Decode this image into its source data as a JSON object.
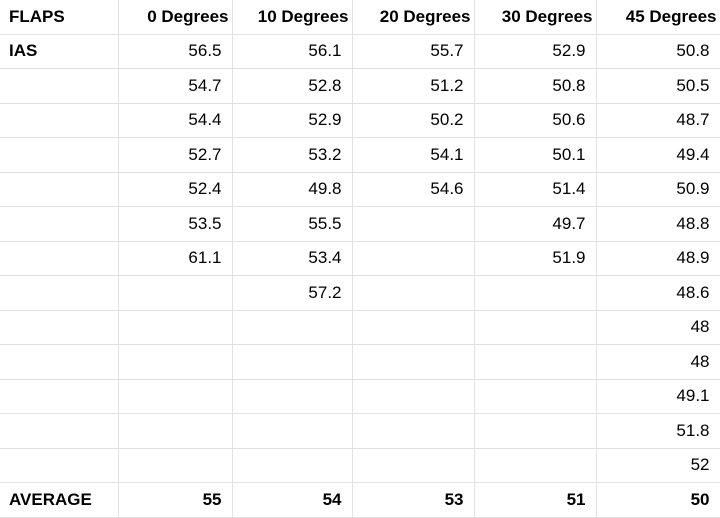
{
  "table": {
    "header": [
      "FLAPS",
      "0 Degrees",
      "10 Degrees",
      "20 Degrees",
      "30 Degrees",
      "45 Degrees"
    ],
    "rows": [
      [
        "IAS",
        56.5,
        56.1,
        55.7,
        52.9,
        50.8
      ],
      [
        null,
        54.7,
        52.8,
        51.2,
        50.8,
        50.5
      ],
      [
        null,
        54.4,
        52.9,
        50.2,
        50.6,
        48.7
      ],
      [
        null,
        52.7,
        53.2,
        54.1,
        50.1,
        49.4
      ],
      [
        null,
        52.4,
        49.8,
        54.6,
        51.4,
        50.9
      ],
      [
        null,
        53.5,
        55.5,
        null,
        49.7,
        48.8
      ],
      [
        null,
        61.1,
        53.4,
        null,
        51.9,
        48.9
      ],
      [
        null,
        null,
        57.2,
        null,
        null,
        48.6
      ],
      [
        null,
        null,
        null,
        null,
        null,
        48
      ],
      [
        null,
        null,
        null,
        null,
        null,
        48
      ],
      [
        null,
        null,
        null,
        null,
        null,
        49.1
      ],
      [
        null,
        null,
        null,
        null,
        null,
        51.8
      ],
      [
        null,
        null,
        null,
        null,
        null,
        52
      ]
    ],
    "footer": [
      "AVERAGE",
      55,
      54,
      53,
      51,
      50
    ]
  }
}
